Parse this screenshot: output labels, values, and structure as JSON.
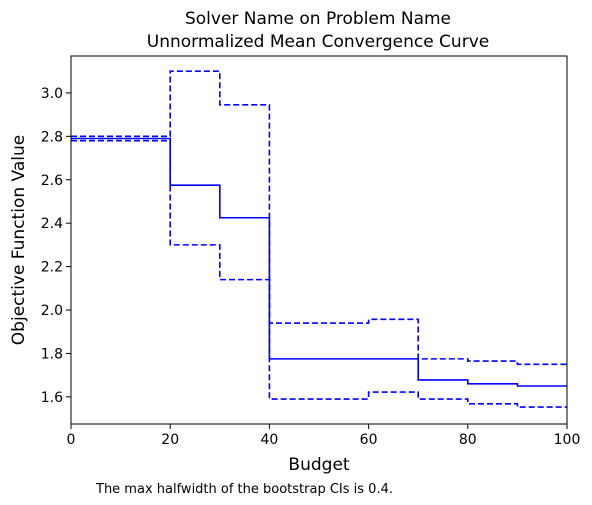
{
  "chart_data": {
    "type": "line",
    "title": [
      "Solver Name on Problem Name",
      "Unnormalized Mean Convergence Curve"
    ],
    "xlabel": "Budget",
    "ylabel": "Objective Function Value",
    "xlim": [
      0,
      100
    ],
    "ylim": [
      1.475,
      3.17
    ],
    "xticks": [
      0,
      20,
      40,
      60,
      80,
      100
    ],
    "yticks": [
      1.6,
      1.8,
      2.0,
      2.2,
      2.4,
      2.6,
      2.8,
      3.0
    ],
    "grid": false,
    "color": "#0000ff",
    "series": [
      {
        "style": "solid",
        "points": [
          [
            0,
            2.79
          ],
          [
            20,
            2.79
          ],
          [
            20,
            2.575
          ],
          [
            30,
            2.575
          ],
          [
            30,
            2.425
          ],
          [
            40,
            2.425
          ],
          [
            40,
            1.775
          ],
          [
            70,
            1.775
          ],
          [
            70,
            1.678
          ],
          [
            80,
            1.678
          ],
          [
            80,
            1.66
          ],
          [
            90,
            1.66
          ],
          [
            90,
            1.65
          ],
          [
            100,
            1.65
          ]
        ]
      },
      {
        "style": "dashed",
        "points": [
          [
            0,
            2.8
          ],
          [
            20,
            2.8
          ],
          [
            20,
            3.1
          ],
          [
            30,
            3.1
          ],
          [
            30,
            2.945
          ],
          [
            40,
            2.945
          ],
          [
            40,
            1.94
          ],
          [
            60,
            1.94
          ],
          [
            60,
            1.957
          ],
          [
            70,
            1.957
          ],
          [
            70,
            1.775
          ],
          [
            80,
            1.775
          ],
          [
            80,
            1.765
          ],
          [
            90,
            1.765
          ],
          [
            90,
            1.75
          ],
          [
            100,
            1.75
          ]
        ]
      },
      {
        "style": "dashed",
        "points": [
          [
            0,
            2.78
          ],
          [
            20,
            2.78
          ],
          [
            20,
            2.3
          ],
          [
            30,
            2.3
          ],
          [
            30,
            2.14
          ],
          [
            40,
            2.14
          ],
          [
            40,
            1.59
          ],
          [
            60,
            1.59
          ],
          [
            60,
            1.622
          ],
          [
            70,
            1.622
          ],
          [
            70,
            1.59
          ],
          [
            80,
            1.59
          ],
          [
            80,
            1.568
          ],
          [
            90,
            1.568
          ],
          [
            90,
            1.553
          ],
          [
            100,
            1.553
          ]
        ]
      }
    ]
  },
  "footnote": "The max halfwidth of the bootstrap CIs is 0.4."
}
